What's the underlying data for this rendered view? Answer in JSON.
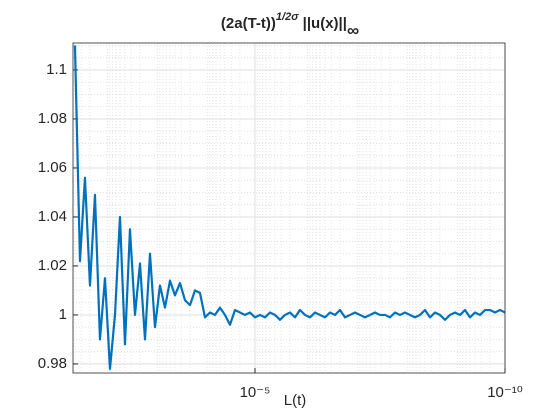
{
  "chart_data": {
    "type": "line",
    "title": [
      "(2a(T-t))",
      "1/2σ",
      " ||u(x)||",
      "∞"
    ],
    "xlabel": "L(t)",
    "xscale": "log",
    "xlim": [
      0.0436,
      1e-10
    ],
    "xticks": [
      {
        "value": 1e-05,
        "label": "10⁻⁵"
      },
      {
        "value": 1e-10,
        "label": "10⁻¹⁰"
      }
    ],
    "ylim": [
      0.9763,
      1.111
    ],
    "yticks": [
      0.98,
      1,
      1.02,
      1.04,
      1.06,
      1.08,
      1.1
    ],
    "grid": true,
    "minor_grid": true,
    "color": "#0072bd",
    "x": [
      0.03981,
      0.03162,
      0.02512,
      0.01995,
      0.01585,
      0.01259,
      0.01,
      0.007943,
      0.00631,
      0.005012,
      0.003981,
      0.003162,
      0.002512,
      0.001995,
      0.001585,
      0.001259,
      0.001,
      0.0007943,
      0.000631,
      0.0005012,
      0.0003981,
      0.0003162,
      0.0002512,
      0.0001995,
      0.0001585,
      0.0001259,
      0.0001,
      7.943e-05,
      6.31e-05,
      5.012e-05,
      3.981e-05,
      3.162e-05,
      2.512e-05,
      1.995e-05,
      1.585e-05,
      1.259e-05,
      1e-05,
      7.943e-06,
      6.31e-06,
      5.012e-06,
      3.981e-06,
      3.162e-06,
      2.512e-06,
      1.995e-06,
      1.585e-06,
      1.259e-06,
      1e-06,
      7.943e-07,
      6.31e-07,
      5.012e-07,
      3.981e-07,
      3.162e-07,
      2.512e-07,
      1.995e-07,
      1.585e-07,
      1.259e-07,
      1e-07,
      7.943e-08,
      6.31e-08,
      5.012e-08,
      3.981e-08,
      3.162e-08,
      2.512e-08,
      1.995e-08,
      1.585e-08,
      1.259e-08,
      1e-08,
      7.943e-09,
      6.31e-09,
      5.012e-09,
      3.981e-09,
      3.162e-09,
      2.512e-09,
      1.995e-09,
      1.585e-09,
      1.259e-09,
      1e-09,
      7.943e-10,
      6.31e-10,
      5.012e-10,
      3.981e-10,
      3.162e-10,
      2.512e-10,
      1.995e-10,
      1.585e-10,
      1.259e-10,
      1e-10
    ],
    "values": [
      1.11,
      1.022,
      1.056,
      1.012,
      1.049,
      0.99,
      1.015,
      0.978,
      1.0,
      1.04,
      0.988,
      1.035,
      1.0,
      1.021,
      0.99,
      1.025,
      0.995,
      1.012,
      1.003,
      1.014,
      1.008,
      1.013,
      1.006,
      1.004,
      1.01,
      1.009,
      0.999,
      1.001,
      1.0,
      1.003,
      1.0,
      0.996,
      1.002,
      1.001,
      1.0,
      1.001,
      0.999,
      1.0,
      0.999,
      1.001,
      1.0,
      0.998,
      1.0,
      1.001,
      0.999,
      1.002,
      1.0,
      0.999,
      1.001,
      1.0,
      0.999,
      1.001,
      1.0,
      1.002,
      0.999,
      1.0,
      1.001,
      1.0,
      0.999,
      1.0,
      1.001,
      1.0,
      1.0,
      0.999,
      1.001,
      1.0,
      1.001,
      1.0,
      0.999,
      1.0,
      1.002,
      0.999,
      1.001,
      1.0,
      0.998,
      1.0,
      1.001,
      1.0,
      1.002,
      0.999,
      1.001,
      1.0,
      1.002,
      1.002,
      1.001,
      1.002,
      1.001
    ]
  }
}
